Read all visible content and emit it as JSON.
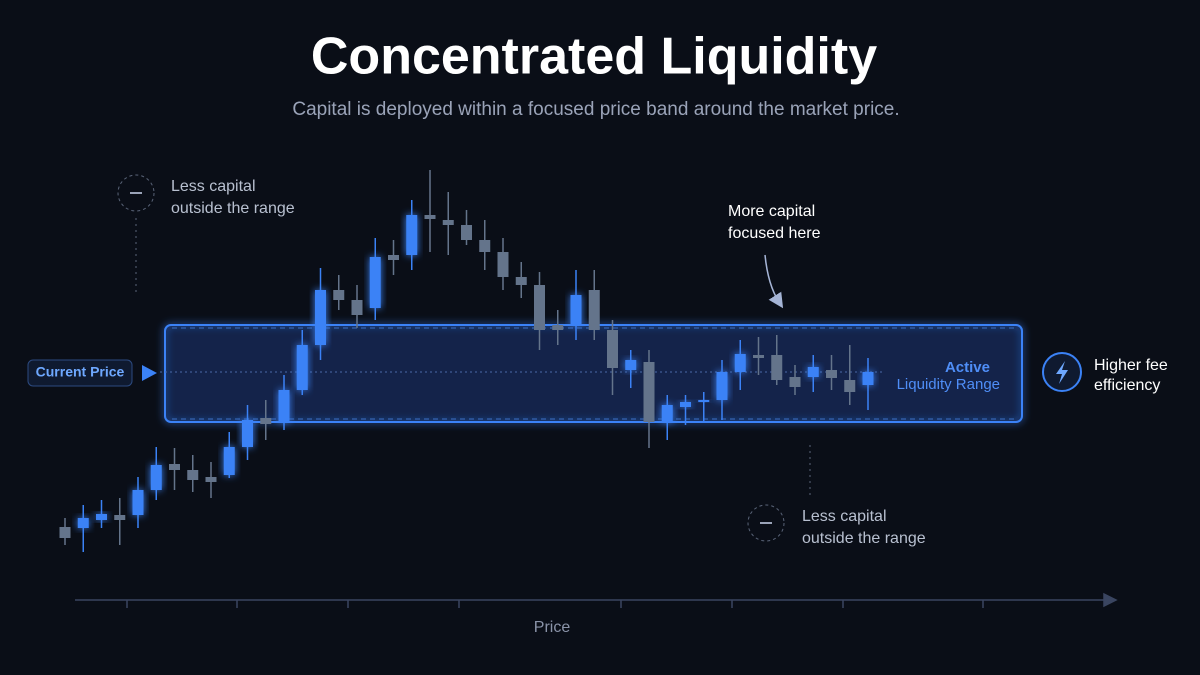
{
  "chart_data": {
    "type": "candlestick",
    "title": "Concentrated Liquidity",
    "subtitle": "Capital is deployed within a focused price band around the market price.",
    "x_label": "Price",
    "ylim": [
      0,
      410
    ],
    "open": [
      53,
      52,
      60,
      65,
      65,
      90,
      116,
      110,
      103,
      105,
      133,
      162,
      158,
      190,
      235,
      290,
      280,
      272,
      325,
      325,
      365,
      360,
      355,
      340,
      328,
      303,
      295,
      255,
      255,
      290,
      250,
      210,
      218,
      158,
      173,
      178,
      180,
      208,
      225,
      225,
      203,
      203,
      210,
      200,
      195
    ],
    "close": [
      42,
      62,
      66,
      60,
      90,
      115,
      110,
      100,
      98,
      133,
      160,
      156,
      190,
      235,
      290,
      280,
      265,
      323,
      320,
      365,
      361,
      355,
      340,
      328,
      303,
      295,
      250,
      250,
      285,
      250,
      212,
      220,
      158,
      175,
      178,
      180,
      208,
      226,
      222,
      200,
      193,
      213,
      202,
      188,
      208
    ],
    "high": [
      62,
      75,
      80,
      82,
      103,
      133,
      132,
      125,
      118,
      148,
      175,
      180,
      205,
      250,
      312,
      305,
      295,
      342,
      340,
      380,
      410,
      388,
      370,
      360,
      342,
      318,
      308,
      270,
      310,
      310,
      260,
      230,
      230,
      185,
      185,
      188,
      220,
      240,
      243,
      245,
      215,
      225,
      225,
      235,
      222
    ],
    "low": [
      35,
      28,
      52,
      35,
      52,
      80,
      90,
      88,
      82,
      102,
      120,
      140,
      150,
      185,
      220,
      270,
      252,
      260,
      305,
      310,
      328,
      325,
      335,
      310,
      290,
      282,
      230,
      235,
      240,
      240,
      185,
      192,
      132,
      140,
      155,
      158,
      160,
      190,
      205,
      195,
      185,
      188,
      190,
      175,
      170
    ],
    "up_color": "#3b82f6",
    "down_color": "#64748b",
    "range": [
      158,
      255
    ],
    "current_price": 208,
    "current_price_label": "Current Price",
    "range_label": [
      "Active",
      "Liquidity Range"
    ],
    "annotations": {
      "outside_top": [
        "Less capital",
        "outside the range"
      ],
      "focused": [
        "More capital",
        "focused here"
      ],
      "outside_bottom": [
        "Less capital",
        "outside the range"
      ],
      "efficiency": [
        "Higher fee",
        "efficiency"
      ]
    }
  }
}
